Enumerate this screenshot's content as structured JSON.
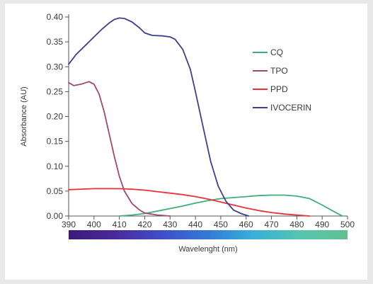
{
  "chart_data": {
    "type": "line",
    "xlabel": "Wavelenght (nm)",
    "ylabel": "Absorbance (AU)",
    "xlim": [
      390,
      500
    ],
    "ylim": [
      0,
      0.4
    ],
    "x_ticks": [
      "390",
      "400",
      "410",
      "420",
      "430",
      "440",
      "450",
      "460",
      "470",
      "480",
      "490",
      "500"
    ],
    "y_ticks": [
      "0.00",
      "0.05",
      "0.10",
      "0.15",
      "0.20",
      "0.25",
      "0.30",
      "0.35",
      "0.40"
    ],
    "grid": false,
    "legend_position": "right",
    "colorbar_gradient": [
      "#3b1a78",
      "#4a2a9a",
      "#3f4fc8",
      "#3579d6",
      "#3ab0d8",
      "#58c4b0",
      "#62c090"
    ],
    "series": [
      {
        "name": "CQ",
        "color": "#3fae7a",
        "points": [
          [
            410,
            0.0
          ],
          [
            415,
            0.002
          ],
          [
            420,
            0.005
          ],
          [
            425,
            0.01
          ],
          [
            430,
            0.015
          ],
          [
            435,
            0.02
          ],
          [
            440,
            0.026
          ],
          [
            445,
            0.031
          ],
          [
            450,
            0.035
          ],
          [
            455,
            0.037
          ],
          [
            460,
            0.039
          ],
          [
            465,
            0.041
          ],
          [
            470,
            0.042
          ],
          [
            475,
            0.042
          ],
          [
            480,
            0.04
          ],
          [
            485,
            0.035
          ],
          [
            490,
            0.022
          ],
          [
            495,
            0.008
          ],
          [
            498,
            0.0
          ]
        ]
      },
      {
        "name": "TPO",
        "color": "#a0486f",
        "points": [
          [
            390,
            0.268
          ],
          [
            392,
            0.262
          ],
          [
            395,
            0.265
          ],
          [
            398,
            0.27
          ],
          [
            400,
            0.265
          ],
          [
            402,
            0.245
          ],
          [
            404,
            0.21
          ],
          [
            406,
            0.165
          ],
          [
            408,
            0.12
          ],
          [
            410,
            0.08
          ],
          [
            412,
            0.05
          ],
          [
            415,
            0.025
          ],
          [
            418,
            0.012
          ],
          [
            420,
            0.006
          ],
          [
            425,
            0.002
          ],
          [
            430,
            0.0
          ]
        ]
      },
      {
        "name": "PPD",
        "color": "#e8323a",
        "points": [
          [
            390,
            0.053
          ],
          [
            395,
            0.054
          ],
          [
            400,
            0.055
          ],
          [
            405,
            0.055
          ],
          [
            410,
            0.055
          ],
          [
            415,
            0.054
          ],
          [
            420,
            0.052
          ],
          [
            425,
            0.049
          ],
          [
            430,
            0.046
          ],
          [
            435,
            0.043
          ],
          [
            440,
            0.039
          ],
          [
            445,
            0.034
          ],
          [
            450,
            0.028
          ],
          [
            455,
            0.022
          ],
          [
            460,
            0.016
          ],
          [
            465,
            0.011
          ],
          [
            470,
            0.007
          ],
          [
            475,
            0.004
          ],
          [
            480,
            0.002
          ],
          [
            485,
            0.0
          ]
        ]
      },
      {
        "name": "IVOCERIN",
        "color": "#3d3f8f",
        "points": [
          [
            390,
            0.305
          ],
          [
            393,
            0.325
          ],
          [
            396,
            0.34
          ],
          [
            400,
            0.36
          ],
          [
            403,
            0.375
          ],
          [
            406,
            0.388
          ],
          [
            408,
            0.395
          ],
          [
            410,
            0.398
          ],
          [
            412,
            0.397
          ],
          [
            415,
            0.39
          ],
          [
            418,
            0.378
          ],
          [
            420,
            0.368
          ],
          [
            423,
            0.363
          ],
          [
            427,
            0.362
          ],
          [
            430,
            0.36
          ],
          [
            432,
            0.355
          ],
          [
            435,
            0.335
          ],
          [
            438,
            0.295
          ],
          [
            440,
            0.25
          ],
          [
            443,
            0.18
          ],
          [
            446,
            0.11
          ],
          [
            449,
            0.06
          ],
          [
            452,
            0.03
          ],
          [
            455,
            0.012
          ],
          [
            458,
            0.005
          ],
          [
            461,
            0.0
          ]
        ]
      }
    ]
  }
}
